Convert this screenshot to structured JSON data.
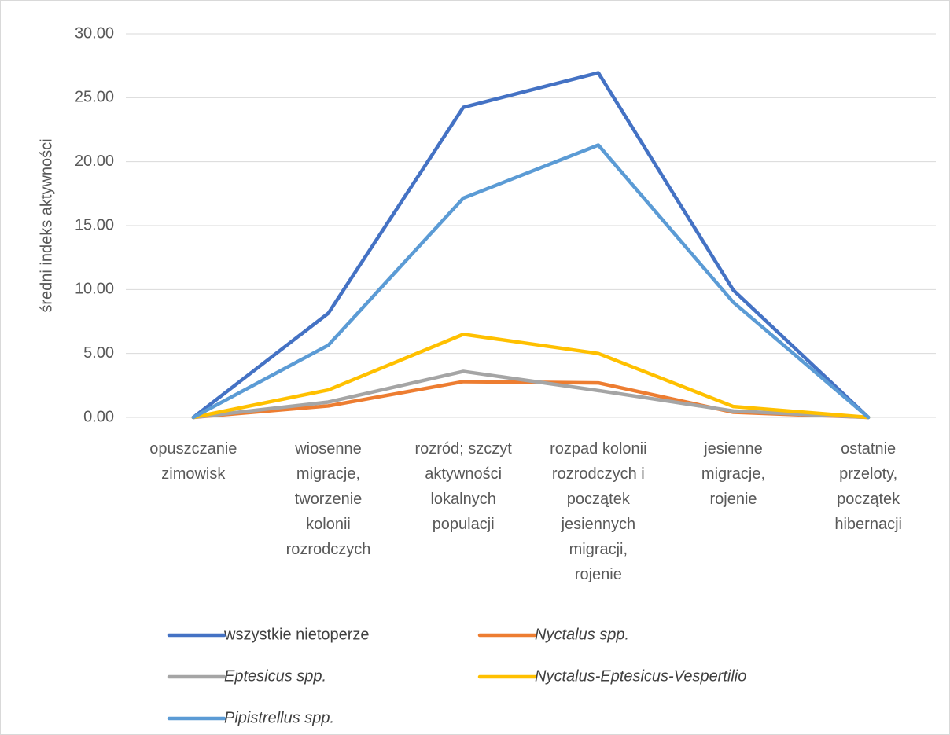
{
  "chart_data": {
    "type": "line",
    "y_label": "średni indeks aktywności",
    "categories": [
      "opuszczanie\nzimowisk",
      "wiosenne\nmigracje,\ntworzenie\nkolonii\nrozrodczych",
      "rozród; szczyt\naktywności\nlokalnych\npopulacji",
      "rozpad kolonii\nrozrodczych i\npoczątek\njesiennych\nmigracji,\nrojenie",
      "jesienne\nmigracje,\nrojenie",
      "ostatnie\nprzeloty,\npoczątek\nhibernacji"
    ],
    "series": [
      {
        "name": "wszystkie nietoperze",
        "color": "#4472c4",
        "italic": false,
        "values": [
          0,
          8.15,
          24.25,
          26.95,
          9.95,
          0
        ]
      },
      {
        "name": "Nyctalus spp.",
        "color": "#ed7d31",
        "italic": true,
        "values": [
          0,
          0.9,
          2.8,
          2.7,
          0.4,
          0
        ]
      },
      {
        "name": "Eptesicus spp.",
        "color": "#a5a5a5",
        "italic": true,
        "values": [
          0,
          1.2,
          3.6,
          2.1,
          0.5,
          0
        ]
      },
      {
        "name": "Nyctalus-Eptesicus-Vespertilio",
        "color": "#ffc000",
        "italic": true,
        "values": [
          0,
          2.15,
          6.5,
          5.0,
          0.85,
          0
        ]
      },
      {
        "name": "Pipistrellus spp.",
        "color": "#5b9bd5",
        "italic": true,
        "values": [
          0,
          5.65,
          17.15,
          21.3,
          9.0,
          0
        ]
      }
    ],
    "ylim": [
      0,
      30
    ],
    "yticks": [
      {
        "value": 0,
        "label": "0.00"
      },
      {
        "value": 5,
        "label": "5.00"
      },
      {
        "value": 10,
        "label": "10.00"
      },
      {
        "value": 15,
        "label": "15.00"
      },
      {
        "value": 20,
        "label": "20.00"
      },
      {
        "value": 25,
        "label": "25.00"
      },
      {
        "value": 30,
        "label": "30.00"
      }
    ],
    "grid": true,
    "legend": "bottom"
  }
}
